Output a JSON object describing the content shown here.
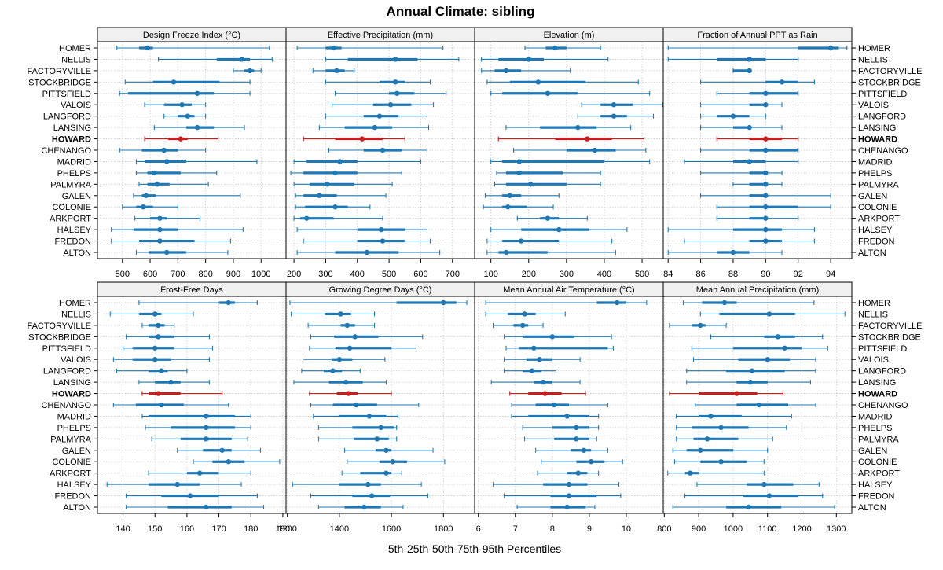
{
  "title": "Annual Climate: sibling",
  "xlabel": "5th-25th-50th-75th-95th Percentiles",
  "colors": {
    "normal": "#1f78b4",
    "highlight": "#c81e1e",
    "grid": "#c8c8c8",
    "strip": "#f0f0f0"
  },
  "chart_data": {
    "type": "dotplot",
    "sites": [
      "HOMER",
      "NELLIS",
      "FACTORYVILLE",
      "STOCKBRIDGE",
      "PITTSFIELD",
      "VALOIS",
      "LANGFORD",
      "LANSING",
      "HOWARD",
      "CHENANGO",
      "MADRID",
      "PHELPS",
      "PALMYRA",
      "GALEN",
      "COLONIE",
      "ARKPORT",
      "HALSEY",
      "FREDON",
      "ALTON"
    ],
    "highlight": "HOWARD",
    "panels": [
      {
        "title": "Design Freeze Index (°C)",
        "xlim": [
          410,
          1090
        ],
        "ticks": [
          500,
          600,
          700,
          800,
          900,
          1000
        ],
        "values": [
          [
            480,
            560,
            590,
            610,
            1030
          ],
          [
            630,
            840,
            930,
            960,
            1040
          ],
          [
            900,
            940,
            960,
            975,
            1000
          ],
          [
            510,
            610,
            685,
            850,
            960
          ],
          [
            490,
            520,
            770,
            830,
            960
          ],
          [
            580,
            650,
            715,
            750,
            800
          ],
          [
            650,
            700,
            735,
            760,
            800
          ],
          [
            615,
            730,
            770,
            830,
            940
          ],
          [
            580,
            665,
            710,
            735,
            845
          ],
          [
            490,
            570,
            650,
            700,
            800
          ],
          [
            550,
            580,
            660,
            730,
            985
          ],
          [
            550,
            590,
            615,
            710,
            840
          ],
          [
            560,
            590,
            625,
            670,
            810
          ],
          [
            540,
            570,
            585,
            620,
            925
          ],
          [
            500,
            550,
            575,
            610,
            700
          ],
          [
            545,
            600,
            635,
            660,
            780
          ],
          [
            460,
            540,
            635,
            700,
            935
          ],
          [
            460,
            560,
            635,
            760,
            890
          ],
          [
            550,
            595,
            660,
            730,
            880
          ]
        ]
      },
      {
        "title": "Effective Precipitation (mm)",
        "xlim": [
          175,
          770
        ],
        "ticks": [
          200,
          300,
          400,
          500,
          600,
          700
        ],
        "values": [
          [
            210,
            300,
            325,
            350,
            670
          ],
          [
            300,
            370,
            520,
            590,
            720
          ],
          [
            260,
            300,
            335,
            360,
            390
          ],
          [
            300,
            470,
            520,
            550,
            630
          ],
          [
            330,
            500,
            525,
            580,
            680
          ],
          [
            320,
            450,
            505,
            570,
            640
          ],
          [
            300,
            420,
            470,
            530,
            620
          ],
          [
            280,
            360,
            455,
            510,
            625
          ],
          [
            230,
            330,
            415,
            480,
            550
          ],
          [
            310,
            420,
            480,
            540,
            620
          ],
          [
            200,
            240,
            345,
            400,
            600
          ],
          [
            190,
            230,
            330,
            400,
            540
          ],
          [
            200,
            250,
            305,
            390,
            510
          ],
          [
            205,
            230,
            280,
            335,
            490
          ],
          [
            205,
            235,
            330,
            370,
            440
          ],
          [
            200,
            220,
            240,
            325,
            480
          ],
          [
            210,
            400,
            475,
            550,
            620
          ],
          [
            230,
            400,
            480,
            550,
            630
          ],
          [
            210,
            330,
            430,
            530,
            660
          ]
        ]
      },
      {
        "title": "Elevation (m)",
        "xlim": [
          57,
          556
        ],
        "ticks": [
          100,
          200,
          300,
          400,
          500
        ],
        "values": [
          [
            190,
            245,
            270,
            300,
            390
          ],
          [
            75,
            120,
            200,
            240,
            410
          ],
          [
            75,
            110,
            140,
            180,
            310
          ],
          [
            90,
            150,
            225,
            350,
            490
          ],
          [
            100,
            130,
            250,
            330,
            520
          ],
          [
            340,
            390,
            425,
            475,
            555
          ],
          [
            330,
            390,
            425,
            460,
            530
          ],
          [
            140,
            230,
            330,
            380,
            470
          ],
          [
            120,
            270,
            355,
            420,
            505
          ],
          [
            160,
            300,
            375,
            430,
            510
          ],
          [
            100,
            130,
            175,
            400,
            520
          ],
          [
            115,
            140,
            175,
            290,
            390
          ],
          [
            110,
            140,
            205,
            300,
            390
          ],
          [
            85,
            130,
            150,
            180,
            280
          ],
          [
            80,
            130,
            145,
            195,
            265
          ],
          [
            170,
            230,
            250,
            280,
            355
          ],
          [
            100,
            180,
            280,
            360,
            460
          ],
          [
            90,
            130,
            180,
            280,
            420
          ],
          [
            90,
            120,
            140,
            250,
            430
          ]
        ]
      },
      {
        "title": "Fraction of Annual PPT as Rain",
        "xlim": [
          83.7,
          95.3
        ],
        "ticks": [
          84,
          86,
          88,
          90,
          92,
          94
        ],
        "values": [
          [
            84,
            92,
            94,
            94.5,
            95
          ],
          [
            84,
            87,
            89,
            90,
            92
          ],
          [
            88,
            88,
            89,
            89,
            89
          ],
          [
            86,
            90,
            91,
            92,
            93
          ],
          [
            87,
            89,
            90,
            92,
            92
          ],
          [
            86,
            89,
            90,
            90,
            91
          ],
          [
            86,
            87,
            88,
            89,
            90
          ],
          [
            86,
            88,
            89,
            89,
            91
          ],
          [
            87,
            89,
            90,
            91,
            92
          ],
          [
            86,
            89,
            90,
            92,
            92
          ],
          [
            85,
            88,
            89,
            90,
            92
          ],
          [
            86,
            89,
            90,
            90,
            91
          ],
          [
            88,
            89,
            90,
            90,
            91
          ],
          [
            86,
            89,
            90,
            90,
            94
          ],
          [
            87,
            89,
            90,
            92,
            94
          ],
          [
            87,
            89,
            90,
            90,
            92
          ],
          [
            84,
            88,
            90,
            91,
            93
          ],
          [
            85,
            89,
            90,
            91,
            93
          ],
          [
            84,
            87,
            88,
            89,
            91
          ]
        ]
      },
      {
        "title": "Frost-Free Days",
        "xlim": [
          132,
          191
        ],
        "ticks": [
          140,
          150,
          160,
          170,
          180,
          190
        ],
        "values": [
          [
            145,
            170,
            173,
            175,
            182
          ],
          [
            136,
            145,
            150,
            152,
            162
          ],
          [
            146,
            148,
            151,
            153,
            156
          ],
          [
            141,
            148,
            151,
            156,
            167
          ],
          [
            140,
            143,
            150,
            156,
            168
          ],
          [
            137,
            143,
            150,
            155,
            167
          ],
          [
            138,
            148,
            152,
            154,
            160
          ],
          [
            145,
            150,
            155,
            158,
            167
          ],
          [
            146,
            148,
            151,
            158,
            171
          ],
          [
            137,
            144,
            152,
            159,
            173
          ],
          [
            146,
            148,
            166,
            175,
            180
          ],
          [
            147,
            155,
            166,
            175,
            180
          ],
          [
            149,
            158,
            166,
            174,
            179
          ],
          [
            157,
            165,
            171,
            174,
            183
          ],
          [
            162,
            168,
            173,
            178,
            189
          ],
          [
            148,
            160,
            164,
            170,
            180
          ],
          [
            135,
            148,
            157,
            164,
            177
          ],
          [
            141,
            152,
            161,
            170,
            182
          ],
          [
            141,
            154,
            166,
            174,
            184
          ]
        ]
      },
      {
        "title": "Growing Degree Days (°C)",
        "xlim": [
          1195,
          1920
        ],
        "ticks": [
          1200,
          1400,
          1600,
          1800
        ],
        "values": [
          [
            1210,
            1620,
            1800,
            1850,
            1890
          ],
          [
            1215,
            1345,
            1405,
            1445,
            1535
          ],
          [
            1280,
            1405,
            1430,
            1460,
            1535
          ],
          [
            1290,
            1380,
            1460,
            1550,
            1720
          ],
          [
            1285,
            1385,
            1440,
            1600,
            1695
          ],
          [
            1260,
            1370,
            1400,
            1450,
            1575
          ],
          [
            1255,
            1340,
            1375,
            1410,
            1480
          ],
          [
            1225,
            1360,
            1425,
            1490,
            1580
          ],
          [
            1285,
            1390,
            1435,
            1470,
            1600
          ],
          [
            1290,
            1375,
            1465,
            1545,
            1705
          ],
          [
            1300,
            1400,
            1515,
            1580,
            1625
          ],
          [
            1320,
            1450,
            1560,
            1610,
            1620
          ],
          [
            1320,
            1455,
            1545,
            1590,
            1620
          ],
          [
            1420,
            1540,
            1580,
            1600,
            1760
          ],
          [
            1430,
            1555,
            1605,
            1660,
            1805
          ],
          [
            1410,
            1480,
            1580,
            1600,
            1640
          ],
          [
            1220,
            1400,
            1510,
            1560,
            1715
          ],
          [
            1290,
            1450,
            1525,
            1595,
            1740
          ],
          [
            1320,
            1420,
            1495,
            1560,
            1645
          ]
        ]
      },
      {
        "title": "Mean Annual Air Temperature (°C)",
        "xlim": [
          5.9,
          11.0
        ],
        "ticks": [
          6,
          7,
          8,
          9,
          10
        ],
        "values": [
          [
            6.2,
            9.2,
            9.75,
            10.0,
            10.55
          ],
          [
            6.2,
            6.8,
            7.25,
            7.55,
            8.35
          ],
          [
            6.4,
            6.95,
            7.2,
            7.35,
            7.75
          ],
          [
            6.7,
            7.2,
            8.0,
            8.6,
            9.6
          ],
          [
            6.75,
            7.1,
            7.5,
            9.5,
            9.65
          ],
          [
            6.7,
            7.3,
            7.65,
            8.0,
            8.75
          ],
          [
            6.7,
            7.2,
            7.45,
            7.7,
            8.1
          ],
          [
            6.35,
            7.5,
            7.75,
            8.0,
            8.75
          ],
          [
            6.85,
            7.35,
            7.8,
            8.25,
            8.9
          ],
          [
            6.9,
            7.55,
            8.05,
            8.45,
            9.5
          ],
          [
            6.9,
            7.35,
            8.4,
            9.0,
            9.25
          ],
          [
            7.2,
            8.0,
            8.65,
            9.0,
            9.25
          ],
          [
            7.25,
            8.05,
            8.65,
            9.0,
            9.2
          ],
          [
            7.55,
            8.5,
            8.85,
            9.05,
            9.5
          ],
          [
            7.7,
            8.65,
            9.05,
            9.4,
            9.9
          ],
          [
            7.6,
            8.4,
            8.7,
            8.95,
            9.25
          ],
          [
            6.4,
            7.75,
            8.45,
            8.95,
            9.8
          ],
          [
            6.7,
            7.95,
            8.45,
            9.2,
            9.85
          ],
          [
            7.05,
            7.95,
            8.4,
            8.9,
            9.15
          ]
        ]
      },
      {
        "title": "Mean Annual Precipitation (mm)",
        "xlim": [
          797,
          1345
        ],
        "ticks": [
          800,
          900,
          1000,
          1100,
          1200,
          1300
        ],
        "values": [
          [
            855,
            910,
            975,
            1010,
            1235
          ],
          [
            905,
            960,
            1105,
            1180,
            1325
          ],
          [
            815,
            880,
            905,
            920,
            980
          ],
          [
            935,
            1090,
            1130,
            1180,
            1260
          ],
          [
            880,
            1000,
            1150,
            1200,
            1275
          ],
          [
            885,
            1015,
            1100,
            1165,
            1240
          ],
          [
            865,
            980,
            1055,
            1150,
            1240
          ],
          [
            865,
            1010,
            1050,
            1100,
            1225
          ],
          [
            815,
            900,
            1010,
            1070,
            1145
          ],
          [
            890,
            1010,
            1075,
            1160,
            1240
          ],
          [
            835,
            900,
            935,
            1025,
            1170
          ],
          [
            835,
            880,
            965,
            1045,
            1155
          ],
          [
            835,
            885,
            925,
            1015,
            1115
          ],
          [
            825,
            865,
            905,
            1000,
            1100
          ],
          [
            830,
            905,
            965,
            1040,
            1090
          ],
          [
            810,
            860,
            875,
            900,
            1090
          ],
          [
            895,
            1040,
            1090,
            1175,
            1250
          ],
          [
            860,
            1030,
            1105,
            1190,
            1260
          ],
          [
            825,
            980,
            1045,
            1140,
            1295
          ]
        ]
      }
    ]
  }
}
